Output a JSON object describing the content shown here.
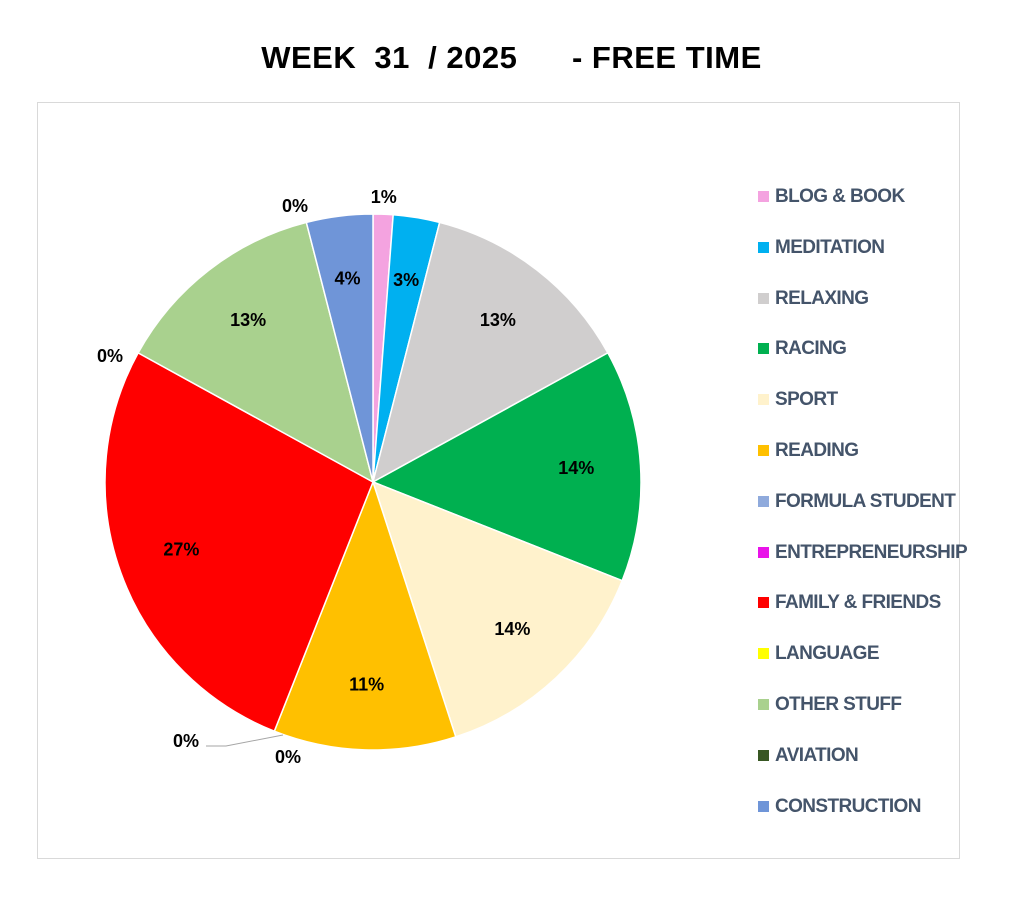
{
  "chart_data": {
    "type": "pie",
    "title": "WEEK  31  / 2025      - FREE TIME",
    "categories": [
      "BLOG & BOOK",
      "MEDITATION",
      "RELAXING",
      "RACING",
      "SPORT",
      "READING",
      "FORMULA STUDENT",
      "ENTREPRENEURSHIP",
      "FAMILY & FRIENDS",
      "LANGUAGE",
      "OTHER STUFF",
      "AVIATION",
      "CONSTRUCTION"
    ],
    "values": [
      1.2,
      2.8,
      13.0,
      14.0,
      14.0,
      11.0,
      0,
      0,
      27.0,
      0,
      13.0,
      0,
      4.0
    ],
    "data_labels": [
      "1%",
      "3%",
      "13%",
      "14%",
      "14%",
      "11%",
      "0%",
      "0%",
      "27%",
      "0%",
      "13%",
      "0%",
      "4%"
    ],
    "colors": [
      "#f4a3e0",
      "#00b0f0",
      "#d0cece",
      "#00b050",
      "#fff2cc",
      "#ffc000",
      "#8faadc",
      "#e913e9",
      "#ff0000",
      "#ffff00",
      "#a9d18e",
      "#385723",
      "#6f95d8"
    ],
    "legend_labels": [
      "BLOG & BOOK",
      "MEDITATION",
      "RELAXING",
      "RACING",
      "SPORT",
      "READING",
      "FORMULA STUDENT",
      "ENTREPRENEURSHIP",
      "FAMILY & FRIENDS",
      "LANGUAGE",
      "OTHER STUFF",
      "AVIATION",
      "CONSTRUCTION"
    ],
    "legend_position": "right",
    "start_angle_deg": 0,
    "direction": "clockwise"
  }
}
